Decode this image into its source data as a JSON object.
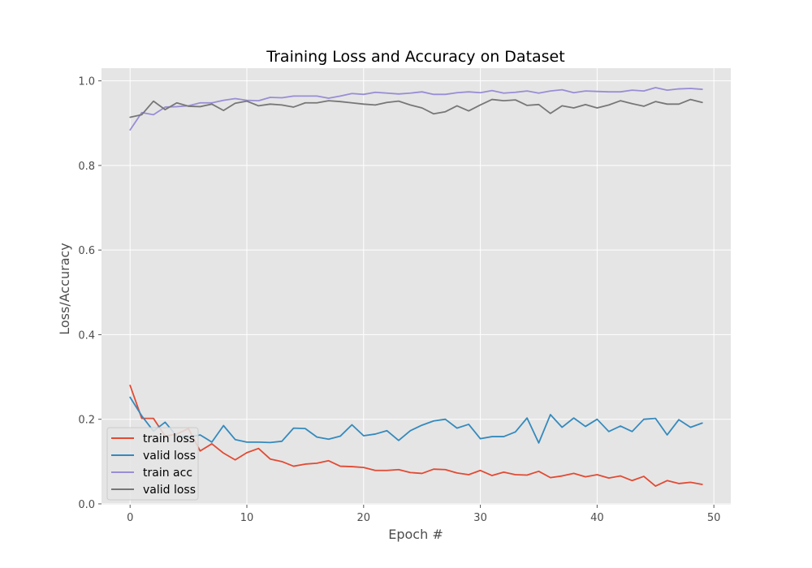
{
  "chart_data": {
    "type": "line",
    "title": "Training Loss and Accuracy on Dataset",
    "xlabel": "Epoch #",
    "ylabel": "Loss/Accuracy",
    "xlim": [
      -2.45,
      51.45
    ],
    "ylim": [
      -0.002,
      1.03
    ],
    "xticks": [
      0,
      10,
      20,
      30,
      40,
      50
    ],
    "yticks": [
      0.0,
      0.2,
      0.4,
      0.6,
      0.8,
      1.0
    ],
    "xtick_labels": [
      "0",
      "10",
      "20",
      "30",
      "40",
      "50"
    ],
    "ytick_labels": [
      "0.0",
      "0.2",
      "0.4",
      "0.6",
      "0.8",
      "1.0"
    ],
    "grid": true,
    "legend_position": "lower-left",
    "x": [
      0,
      1,
      2,
      3,
      4,
      5,
      6,
      7,
      8,
      9,
      10,
      11,
      12,
      13,
      14,
      15,
      16,
      17,
      18,
      19,
      20,
      21,
      22,
      23,
      24,
      25,
      26,
      27,
      28,
      29,
      30,
      31,
      32,
      33,
      34,
      35,
      36,
      37,
      38,
      39,
      40,
      41,
      42,
      43,
      44,
      45,
      46,
      47,
      48,
      49
    ],
    "series": [
      {
        "name": "train loss",
        "color": "#e24a33",
        "values": [
          0.28,
          0.202,
          0.202,
          0.16,
          0.165,
          0.178,
          0.125,
          0.142,
          0.12,
          0.104,
          0.121,
          0.131,
          0.106,
          0.1,
          0.089,
          0.094,
          0.096,
          0.102,
          0.089,
          0.088,
          0.086,
          0.079,
          0.079,
          0.081,
          0.074,
          0.072,
          0.082,
          0.081,
          0.073,
          0.069,
          0.079,
          0.067,
          0.075,
          0.069,
          0.068,
          0.077,
          0.062,
          0.066,
          0.072,
          0.064,
          0.069,
          0.061,
          0.066,
          0.055,
          0.065,
          0.042,
          0.055,
          0.048,
          0.051,
          0.046
        ]
      },
      {
        "name": "valid loss",
        "color": "#348abd",
        "values": [
          0.252,
          0.208,
          0.172,
          0.193,
          0.16,
          0.158,
          0.163,
          0.146,
          0.185,
          0.152,
          0.146,
          0.146,
          0.145,
          0.148,
          0.179,
          0.178,
          0.158,
          0.153,
          0.16,
          0.187,
          0.161,
          0.165,
          0.173,
          0.15,
          0.173,
          0.186,
          0.196,
          0.2,
          0.179,
          0.188,
          0.154,
          0.159,
          0.159,
          0.17,
          0.203,
          0.144,
          0.211,
          0.181,
          0.203,
          0.183,
          0.2,
          0.171,
          0.184,
          0.171,
          0.2,
          0.202,
          0.163,
          0.199,
          0.181,
          0.191
        ]
      },
      {
        "name": "train acc",
        "color": "#988ed5",
        "values": [
          0.884,
          0.925,
          0.92,
          0.938,
          0.939,
          0.941,
          0.948,
          0.948,
          0.954,
          0.958,
          0.954,
          0.953,
          0.961,
          0.96,
          0.964,
          0.964,
          0.964,
          0.959,
          0.964,
          0.97,
          0.968,
          0.973,
          0.971,
          0.969,
          0.971,
          0.974,
          0.968,
          0.968,
          0.972,
          0.974,
          0.972,
          0.977,
          0.971,
          0.973,
          0.976,
          0.971,
          0.976,
          0.979,
          0.972,
          0.976,
          0.975,
          0.974,
          0.974,
          0.978,
          0.976,
          0.984,
          0.978,
          0.981,
          0.982,
          0.98
        ]
      },
      {
        "name": "valid loss",
        "color": "#777777",
        "values": [
          0.914,
          0.92,
          0.952,
          0.932,
          0.948,
          0.94,
          0.939,
          0.945,
          0.93,
          0.947,
          0.952,
          0.941,
          0.945,
          0.943,
          0.938,
          0.948,
          0.948,
          0.953,
          0.951,
          0.948,
          0.945,
          0.943,
          0.949,
          0.952,
          0.943,
          0.936,
          0.922,
          0.927,
          0.941,
          0.929,
          0.943,
          0.956,
          0.953,
          0.955,
          0.942,
          0.944,
          0.923,
          0.941,
          0.936,
          0.944,
          0.936,
          0.943,
          0.953,
          0.946,
          0.94,
          0.951,
          0.945,
          0.945,
          0.956,
          0.949
        ]
      }
    ]
  }
}
